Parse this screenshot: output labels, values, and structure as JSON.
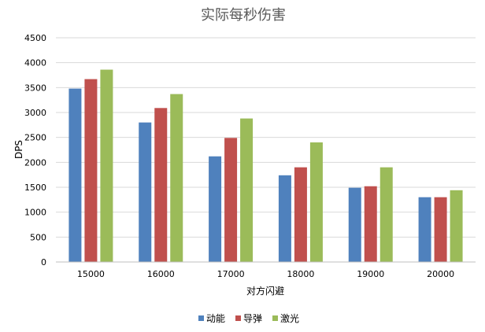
{
  "chart_data": {
    "type": "bar",
    "title": "实际每秒伤害",
    "xlabel": "对方闪避",
    "ylabel": "DPS",
    "categories": [
      "15000",
      "16000",
      "17000",
      "18000",
      "19000",
      "20000"
    ],
    "ylim": [
      0,
      4500
    ],
    "yticks": [
      0,
      500,
      1000,
      1500,
      2000,
      2500,
      3000,
      3500,
      4000,
      4500
    ],
    "grid": true,
    "legend_position": "bottom",
    "series": [
      {
        "name": "动能",
        "color": "#4f81bd",
        "values": [
          3480,
          2800,
          2120,
          1740,
          1490,
          1300
        ]
      },
      {
        "name": "导弹",
        "color": "#c0504d",
        "values": [
          3670,
          3090,
          2490,
          1900,
          1520,
          1300
        ]
      },
      {
        "name": "激光",
        "color": "#9bbb59",
        "values": [
          3860,
          3370,
          2880,
          2400,
          1900,
          1440
        ]
      }
    ]
  }
}
